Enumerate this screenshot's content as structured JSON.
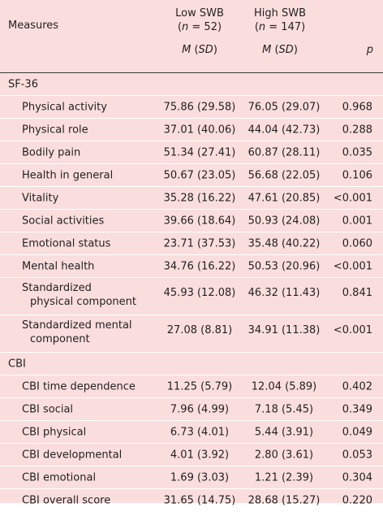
{
  "header": {
    "measures": "Measures",
    "low_title": "Low SWB",
    "low_n_label": "n",
    "low_n_rest": " = 52)",
    "high_title": "High SWB",
    "high_n_label": "n",
    "high_n_rest": " = 147)",
    "stat_m": "M",
    "stat_sd": "SD",
    "p": "p"
  },
  "sections": [
    {
      "title": "SF-36",
      "rows": [
        {
          "label": "Physical activity",
          "low": "75.86 (29.58)",
          "high": "76.05 (29.07)",
          "p": "0.968"
        },
        {
          "label": "Physical role",
          "low": "37.01 (40.06)",
          "high": "44.04 (42.73)",
          "p": "0.288"
        },
        {
          "label": "Bodily pain",
          "low": "51.34 (27.41)",
          "high": "60.87 (28.11)",
          "p": "0.035"
        },
        {
          "label": "Health in general",
          "low": "50.67 (23.05)",
          "high": "56.68 (22.05)",
          "p": "0.106"
        },
        {
          "label": "Vitality",
          "low": "35.28 (16.22)",
          "high": "47.61 (20.85)",
          "p": "<0.001"
        },
        {
          "label": "Social activities",
          "low": "39.66 (18.64)",
          "high": "50.93 (24.08)",
          "p": "0.001"
        },
        {
          "label": "Emotional status",
          "low": "23.71 (37.53)",
          "high": "35.48 (40.22)",
          "p": "0.060"
        },
        {
          "label": "Mental health",
          "low": "34.76 (16.22)",
          "high": "50.53 (20.96)",
          "p": "<0.001"
        },
        {
          "label": "Standardized",
          "label2": "physical component",
          "low": "45.93 (12.08)",
          "high": "46.32 (11.43)",
          "p": "0.841"
        },
        {
          "label": "Standardized mental",
          "label2": "component",
          "low": "27.08 (8.81)",
          "high": "34.91 (11.38)",
          "p": "<0.001"
        }
      ]
    },
    {
      "title": "CBI",
      "rows": [
        {
          "label": "CBI time dependence",
          "low": "11.25 (5.79)",
          "high": "12.04 (5.89)",
          "p": "0.402"
        },
        {
          "label": "CBI social",
          "low": "7.96 (4.99)",
          "high": "7.18 (5.45)",
          "p": "0.349"
        },
        {
          "label": "CBI physical",
          "low": "6.73 (4.01)",
          "high": "5.44 (3.91)",
          "p": "0.049"
        },
        {
          "label": "CBI developmental",
          "low": "4.01 (3.92)",
          "high": "2.80 (3.61)",
          "p": "0.053"
        },
        {
          "label": "CBI emotional",
          "low": "1.69 (3.03)",
          "high": "1.21 (2.39)",
          "p": "0.304"
        },
        {
          "label": "CBI overall score",
          "low": "31.65 (14.75)",
          "high": "28.68 (15.27)",
          "p": "0.220"
        }
      ]
    }
  ]
}
